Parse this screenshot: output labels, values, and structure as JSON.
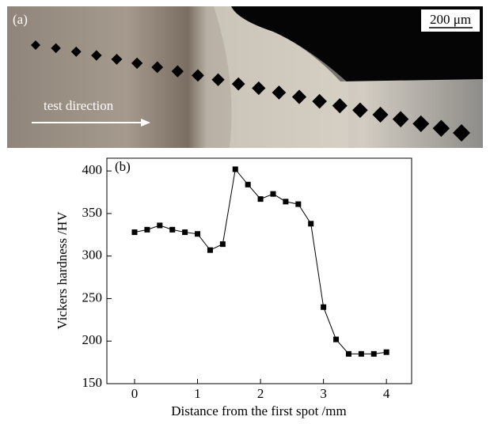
{
  "micrograph": {
    "panel_label": "(a)",
    "scale_bar": "200 μm",
    "annotation": "test direction"
  },
  "chart_data": {
    "type": "line",
    "panel_label": "(b)",
    "x_label": "Distance from the first spot /mm",
    "y_label": "Vickers hardness /HV",
    "x": [
      0,
      0.2,
      0.4,
      0.6,
      0.8,
      1.0,
      1.2,
      1.4,
      1.6,
      1.8,
      2.0,
      2.2,
      2.4,
      2.6,
      2.8,
      3.0,
      3.2,
      3.4,
      3.6,
      3.8,
      4.0
    ],
    "series": [
      {
        "color": "#000000",
        "values": [
          328,
          331,
          336,
          331,
          328,
          326,
          307,
          314,
          402,
          384,
          367,
          373,
          364,
          361,
          338,
          240,
          202,
          185,
          185,
          185,
          187
        ]
      }
    ],
    "xlim": [
      -0.44,
      4.4
    ],
    "xticks": [
      0,
      1,
      2,
      3,
      4
    ],
    "ylim": [
      150,
      415
    ],
    "yticks": [
      150,
      200,
      250,
      300,
      350,
      400
    ]
  }
}
